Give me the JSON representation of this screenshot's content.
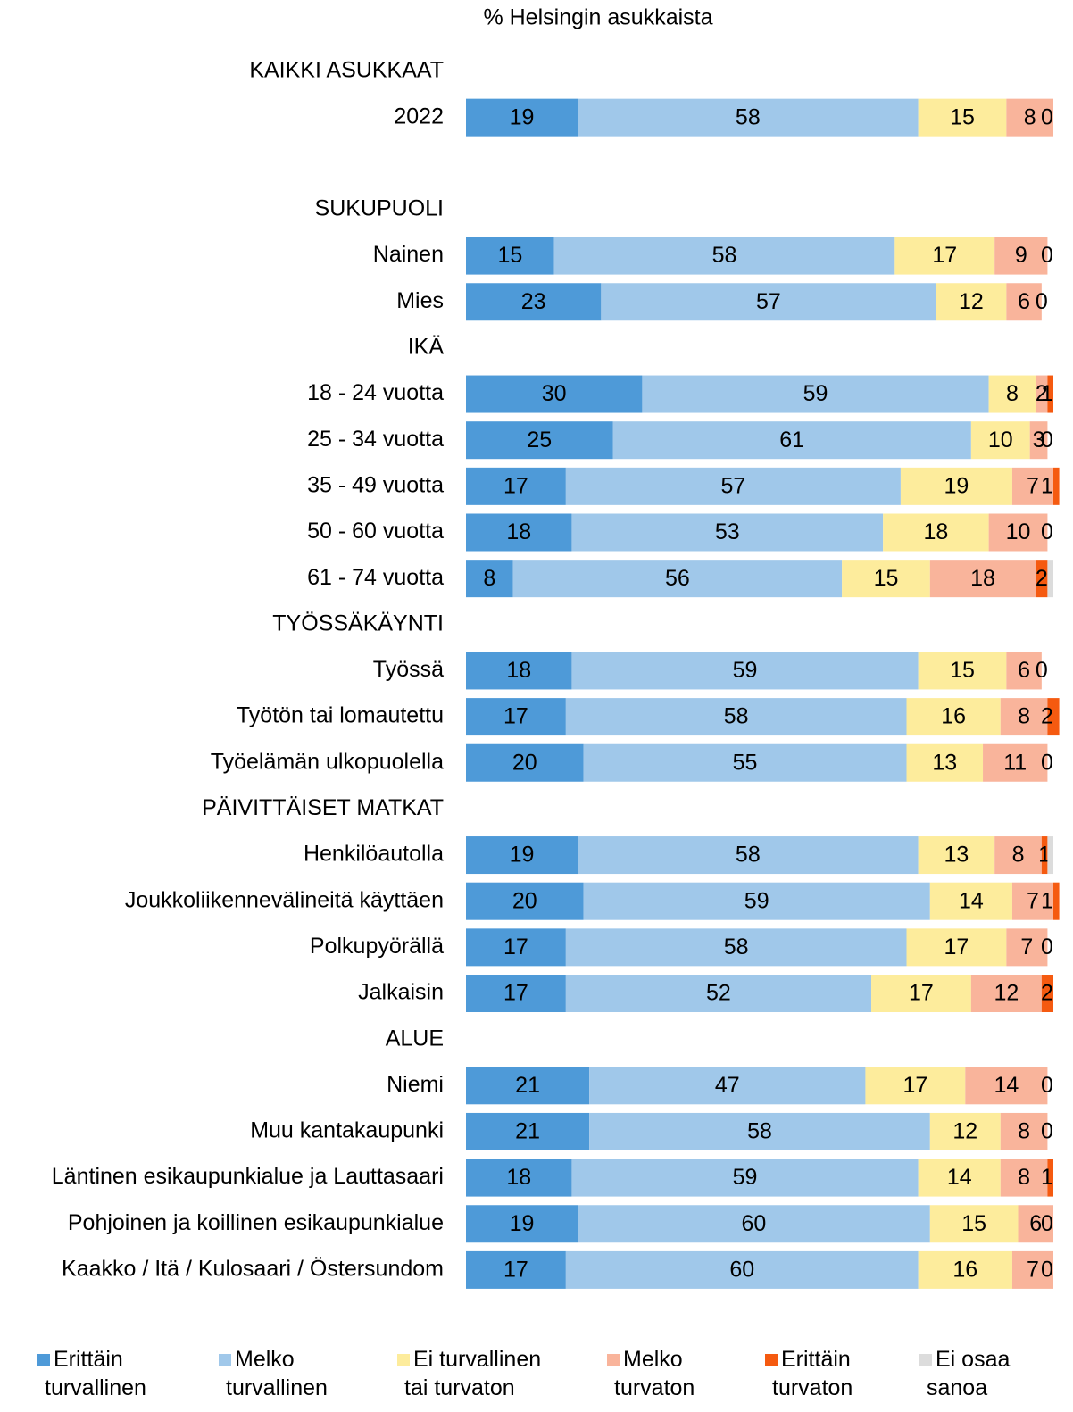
{
  "chart_data": {
    "type": "stacked-bar-horizontal",
    "title": "% Helsingin asukkaista",
    "categories": [
      "KAIKKI ASUKKAAT",
      "2022",
      null,
      "SUKUPUOLI",
      "Nainen",
      "Mies",
      "IKÄ",
      "18 - 24 vuotta",
      "25 - 34 vuotta",
      "35 - 49 vuotta",
      "50 - 60 vuotta",
      "61 - 74 vuotta",
      "TYÖSSÄKÄYNTI",
      "Työssä",
      "Työtön tai lomautettu",
      "Työelämän ulkopuolella",
      "PÄIVITTÄISET MATKAT",
      "Henkilöautolla",
      "Joukkoliikennevälineitä käyttäen",
      "Polkupyörällä",
      "Jalkaisin",
      "ALUE",
      "Niemi",
      "Muu kantakaupunki",
      "Läntinen esikaupunkialue ja Lauttasaari",
      "Pohjoinen ja koillinen esikaupunkialue",
      "Kaakko / Itä / Kulosaari / Östersundom"
    ],
    "xlim": [
      0,
      100
    ],
    "series": [
      {
        "name": "Erittäin turvallinen",
        "color": "#4e9ad8",
        "show_labels": true,
        "values": [
          null,
          19,
          null,
          null,
          15,
          23,
          null,
          30,
          25,
          17,
          18,
          8,
          null,
          18,
          17,
          20,
          null,
          19,
          20,
          17,
          17,
          null,
          21,
          21,
          18,
          19,
          17
        ]
      },
      {
        "name": "Melko turvallinen",
        "color": "#a0c8ea",
        "show_labels": true,
        "values": [
          null,
          58,
          null,
          null,
          58,
          57,
          null,
          59,
          61,
          57,
          53,
          56,
          null,
          59,
          58,
          55,
          null,
          58,
          59,
          58,
          52,
          null,
          47,
          58,
          59,
          60,
          60
        ]
      },
      {
        "name": "Ei turvallinen tai turvaton",
        "color": "#fdec9c",
        "show_labels": true,
        "values": [
          null,
          15,
          null,
          null,
          17,
          12,
          null,
          8,
          10,
          19,
          18,
          15,
          null,
          15,
          16,
          13,
          null,
          13,
          14,
          17,
          17,
          null,
          17,
          12,
          14,
          15,
          16
        ]
      },
      {
        "name": "Melko turvaton",
        "color": "#f9b49b",
        "show_labels": true,
        "values": [
          null,
          8,
          null,
          null,
          9,
          6,
          null,
          2,
          3,
          7,
          10,
          18,
          null,
          6,
          8,
          11,
          null,
          8,
          7,
          7,
          12,
          null,
          14,
          8,
          8,
          6,
          7
        ]
      },
      {
        "name": "Erittäin turvaton",
        "color": "#f55a10",
        "show_labels": true,
        "values": [
          null,
          0,
          null,
          null,
          0,
          0,
          null,
          1,
          0,
          1,
          0,
          2,
          null,
          0,
          2,
          0,
          null,
          1,
          1,
          0,
          2,
          null,
          0,
          0,
          1,
          0,
          0
        ]
      },
      {
        "name": "Ei osaa sanoa",
        "color": "#dcdcdc",
        "show_labels": false,
        "values": [
          null,
          0,
          null,
          null,
          0,
          0,
          null,
          0,
          0,
          0,
          0,
          1,
          null,
          0,
          0,
          0,
          null,
          1,
          0,
          0,
          0,
          null,
          0,
          0,
          0,
          0,
          0
        ]
      }
    ]
  }
}
